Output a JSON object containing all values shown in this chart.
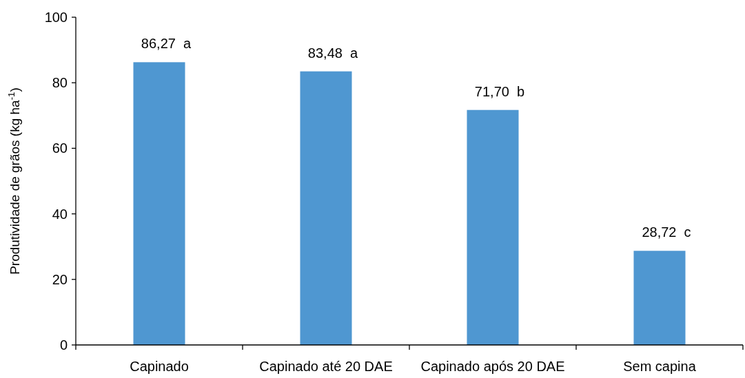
{
  "chart_data": {
    "type": "bar",
    "ylabel": "Produtividade de grãos (kg ha$^{-1}$)",
    "categories": [
      "Capinado",
      "Capinado até 20 DAE",
      "Capinado após 20 DAE",
      "Sem capina"
    ],
    "values": [
      86.27,
      83.48,
      71.7,
      28.72
    ],
    "value_labels": [
      "86,27  a",
      "83,48  a",
      "71,70  b",
      "28,72  c"
    ],
    "color": "#4f97d1",
    "ylim": [
      0,
      100
    ],
    "yticks": [
      0,
      20,
      40,
      60,
      80,
      100
    ],
    "grid": false
  }
}
